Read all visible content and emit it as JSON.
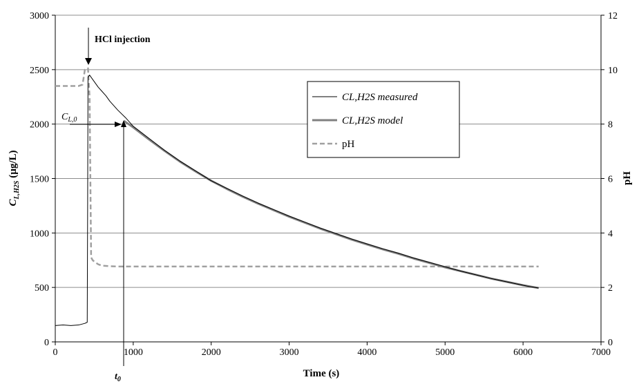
{
  "chart_data": {
    "type": "line",
    "xlabel": "Time (s)",
    "ylabel_main": "C",
    "ylabel_sub": "L,H2S",
    "ylabel_unit": " (µg/L)",
    "y2label": "pH",
    "xlim": [
      0,
      7000
    ],
    "ylim": [
      0,
      3000
    ],
    "y2lim": [
      0,
      12
    ],
    "xticks": [
      "0",
      "1000",
      "2000",
      "3000",
      "4000",
      "5000",
      "6000",
      "7000"
    ],
    "yticks": [
      "0",
      "500",
      "1000",
      "1500",
      "2000",
      "2500",
      "3000"
    ],
    "y2ticks": [
      "0",
      "2",
      "4",
      "6",
      "8",
      "10",
      "12"
    ],
    "grid": "horizontal",
    "legend_position": "upper-right",
    "series": [
      {
        "name": "CL,H2S measured",
        "axis": "left",
        "color": "#000000",
        "x": [
          0,
          100,
          200,
          300,
          380,
          410,
          415,
          420,
          440,
          470,
          500,
          550,
          600,
          650,
          700,
          800,
          900,
          1000,
          1200,
          1400,
          1600,
          1800,
          2000,
          2200,
          2400,
          2600,
          2800,
          3000,
          3200,
          3400,
          3600,
          3800,
          4000,
          4200,
          4400,
          4600,
          4800,
          5000,
          5200,
          5400,
          5600,
          5800,
          6000,
          6100,
          6200
        ],
        "y": [
          150,
          155,
          150,
          155,
          170,
          180,
          1200,
          2430,
          2450,
          2420,
          2390,
          2340,
          2300,
          2260,
          2210,
          2130,
          2060,
          1980,
          1870,
          1760,
          1660,
          1570,
          1480,
          1410,
          1340,
          1275,
          1215,
          1155,
          1100,
          1045,
          995,
          945,
          900,
          855,
          815,
          770,
          730,
          690,
          650,
          615,
          580,
          550,
          520,
          505,
          495
        ]
      },
      {
        "name": "CL,H2S model",
        "axis": "left",
        "color": "#808080",
        "x": [
          880,
          1000,
          1200,
          1400,
          1600,
          1800,
          2000,
          2200,
          2400,
          2600,
          2800,
          3000,
          3200,
          3400,
          3600,
          3800,
          4000,
          4200,
          4400,
          4600,
          4800,
          5000,
          5200,
          5400,
          5600,
          5800,
          6000,
          6200
        ],
        "y": [
          2030,
          1970,
          1860,
          1755,
          1655,
          1565,
          1480,
          1405,
          1335,
          1270,
          1210,
          1150,
          1095,
          1040,
          990,
          940,
          895,
          850,
          810,
          765,
          725,
          685,
          650,
          615,
          580,
          550,
          520,
          495
        ]
      },
      {
        "name": "pH",
        "axis": "right",
        "color": "#a0a0a0",
        "x": [
          0,
          300,
          350,
          380,
          420,
          440,
          460,
          480,
          500,
          550,
          600,
          700,
          800,
          1000,
          2000,
          3000,
          4000,
          5000,
          6000,
          6200
        ],
        "y": [
          9.4,
          9.4,
          9.45,
          10.0,
          10.05,
          9.0,
          3.1,
          3.0,
          2.95,
          2.85,
          2.8,
          2.78,
          2.77,
          2.77,
          2.77,
          2.77,
          2.77,
          2.77,
          2.77,
          2.77
        ]
      }
    ],
    "annotations": {
      "injection_label": "HCl  injection",
      "cl0_main": "C",
      "cl0_sub": "L,0",
      "t0_main": "t",
      "t0_sub": "0"
    }
  }
}
